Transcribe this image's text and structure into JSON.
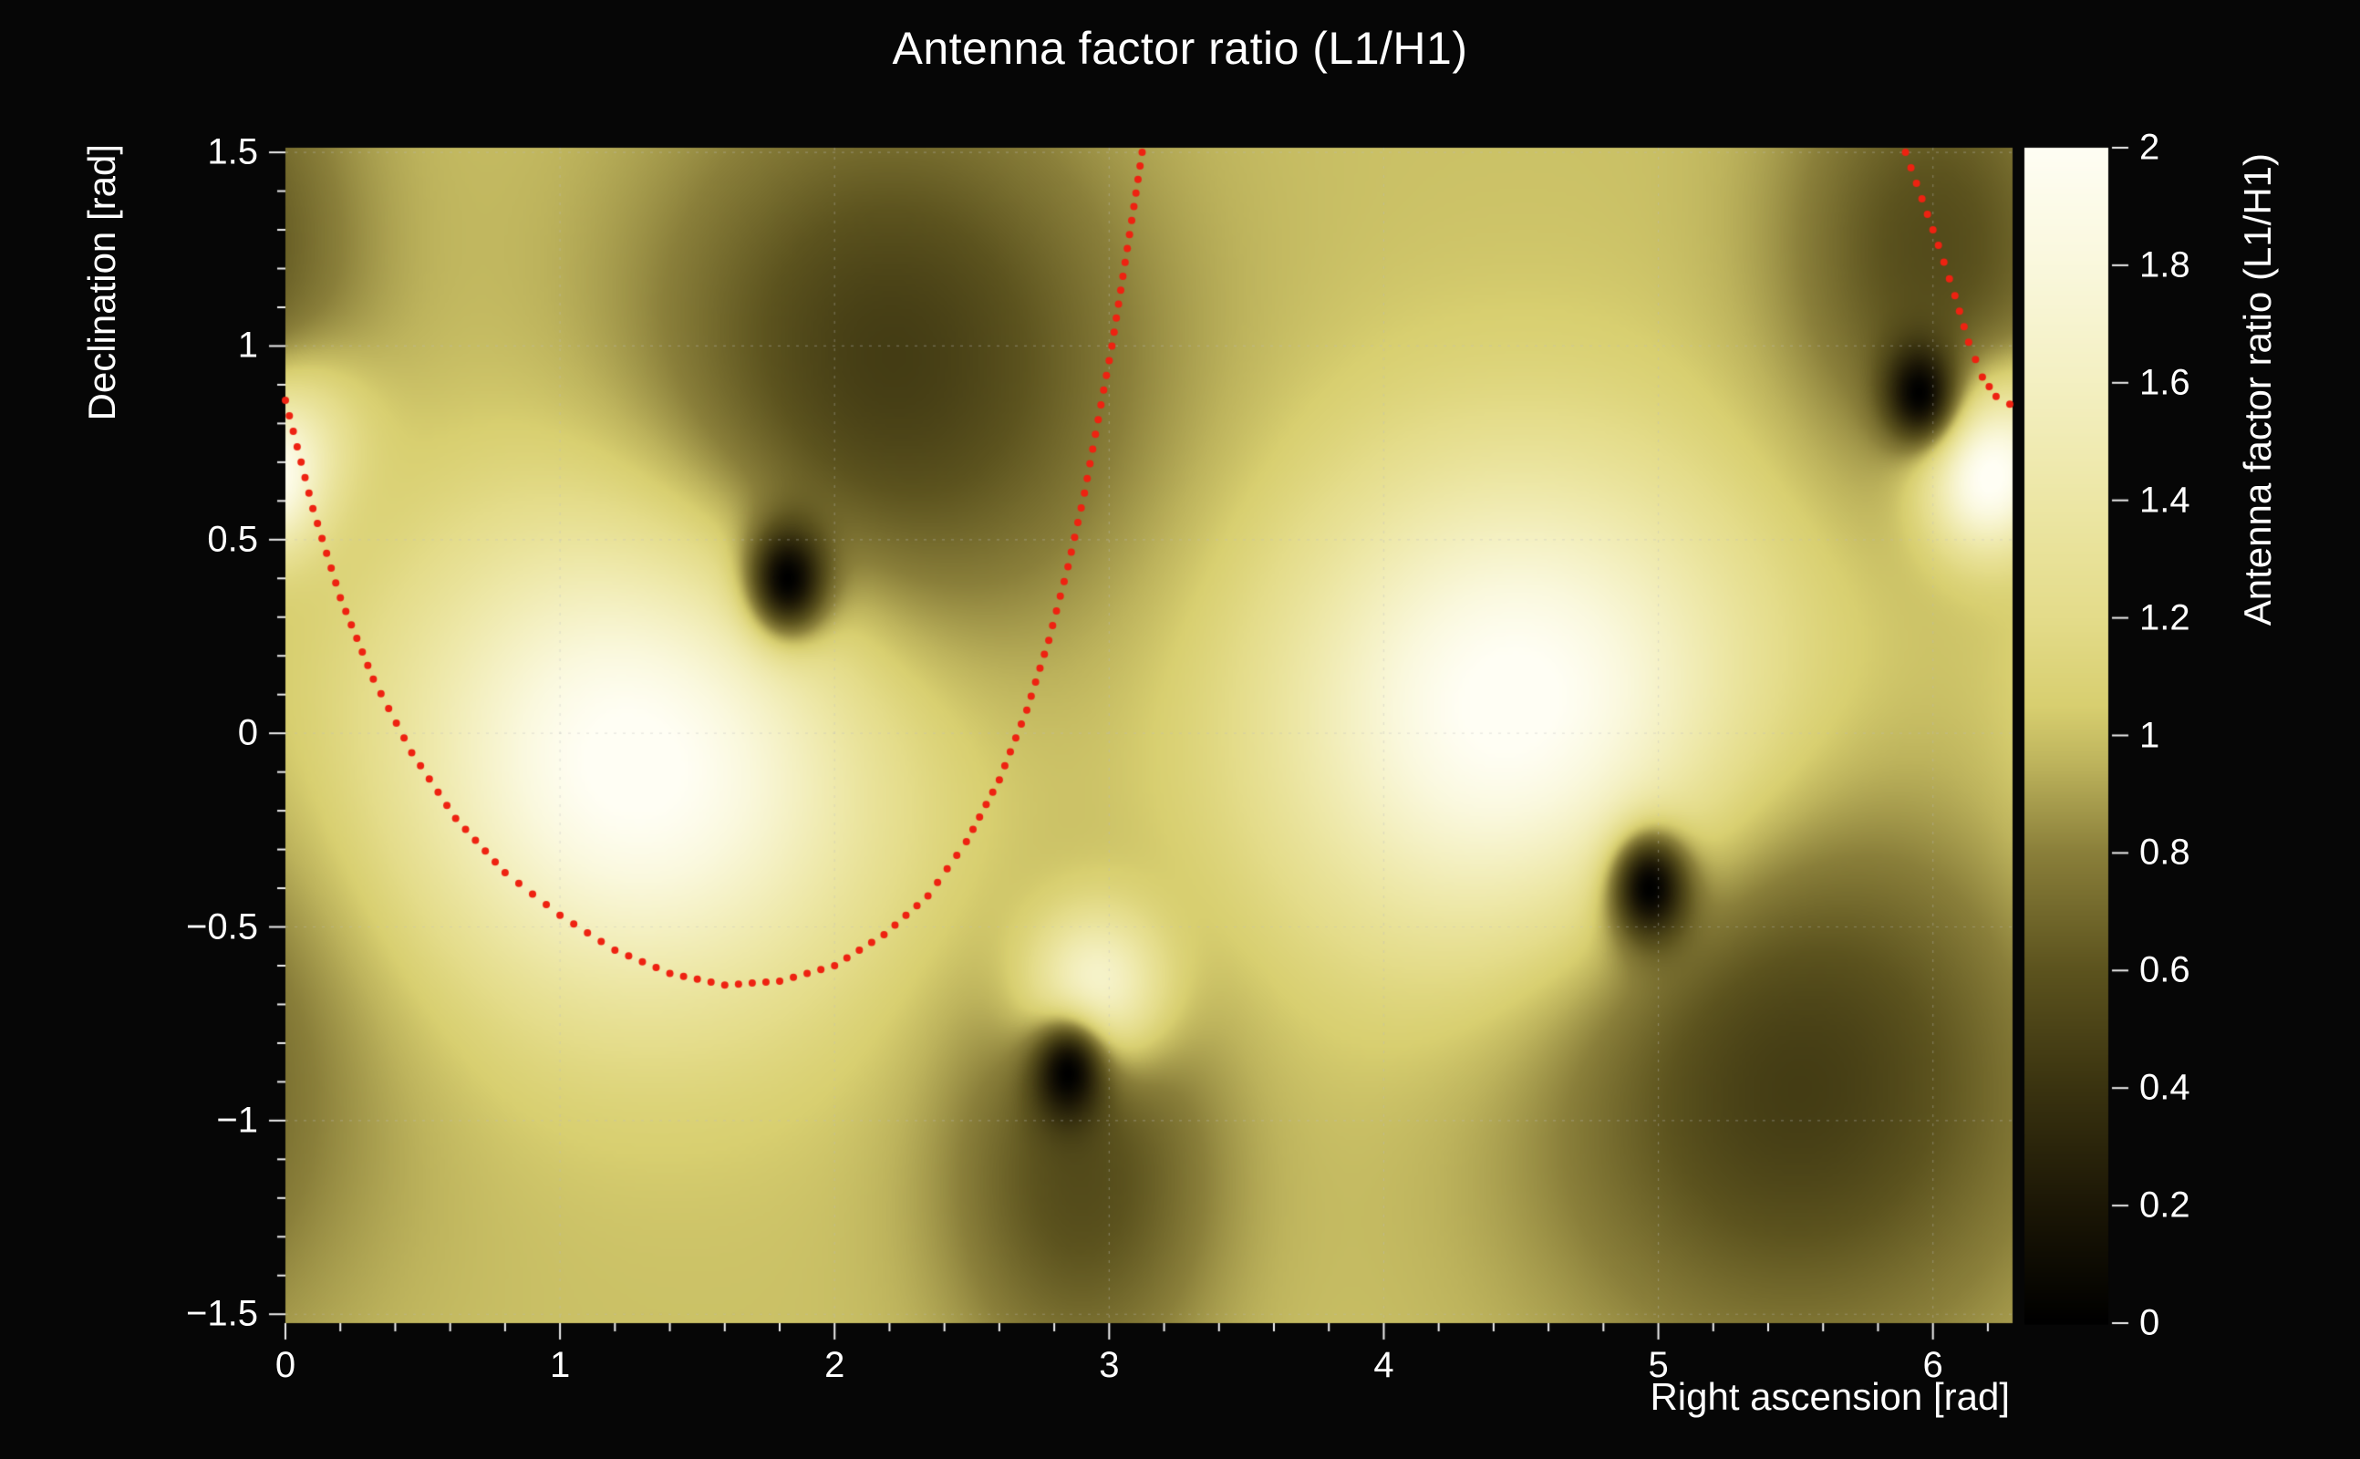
{
  "chart_data": {
    "type": "heatmap",
    "title": "Antenna factor ratio (L1/H1)",
    "xlabel": "Right ascension [rad]",
    "ylabel": "Declination [rad]",
    "colorbar_label": "Antenna factor ratio (L1/H1)",
    "x_range": [
      0,
      6.29
    ],
    "y_range": [
      -1.523,
      1.512
    ],
    "z_range": [
      0,
      2
    ],
    "x_ticks": [
      {
        "v": 0,
        "label": "0"
      },
      {
        "v": 1,
        "label": "1"
      },
      {
        "v": 2,
        "label": "2"
      },
      {
        "v": 3,
        "label": "3"
      },
      {
        "v": 4,
        "label": "4"
      },
      {
        "v": 5,
        "label": "5"
      },
      {
        "v": 6,
        "label": "6"
      }
    ],
    "x_minor_step": 0.2,
    "y_ticks": [
      {
        "v": 1.5,
        "label": "1.5"
      },
      {
        "v": 1.0,
        "label": "1"
      },
      {
        "v": 0.5,
        "label": "0.5"
      },
      {
        "v": 0,
        "label": "0"
      },
      {
        "v": -0.5,
        "label": "−0.5"
      },
      {
        "v": -1.0,
        "label": "−1"
      },
      {
        "v": -1.5,
        "label": "−1.5"
      }
    ],
    "y_minor_step": 0.1,
    "colorbar_ticks": [
      {
        "v": 0,
        "label": "0"
      },
      {
        "v": 0.2,
        "label": "0.2"
      },
      {
        "v": 0.4,
        "label": "0.4"
      },
      {
        "v": 0.6,
        "label": "0.6"
      },
      {
        "v": 0.8,
        "label": "0.8"
      },
      {
        "v": 1.0,
        "label": "1"
      },
      {
        "v": 1.2,
        "label": "1.2"
      },
      {
        "v": 1.4,
        "label": "1.4"
      },
      {
        "v": 1.6,
        "label": "1.6"
      },
      {
        "v": 1.8,
        "label": "1.8"
      },
      {
        "v": 2.0,
        "label": "2"
      }
    ],
    "colormap": [
      {
        "v": 0.0,
        "c": "#000000"
      },
      {
        "v": 0.2,
        "c": "#1c1706"
      },
      {
        "v": 0.4,
        "c": "#3a3310"
      },
      {
        "v": 0.6,
        "c": "#5c531e"
      },
      {
        "v": 0.8,
        "c": "#8a7f3a"
      },
      {
        "v": 0.95,
        "c": "#bdb35c"
      },
      {
        "v": 1.05,
        "c": "#d8cf70"
      },
      {
        "v": 1.2,
        "c": "#e4dc8a"
      },
      {
        "v": 1.4,
        "c": "#ede7a6"
      },
      {
        "v": 1.6,
        "c": "#f4f0c2"
      },
      {
        "v": 1.8,
        "c": "#faf8dd"
      },
      {
        "v": 2.0,
        "c": "#fffef4"
      }
    ],
    "field": {
      "base": 1.0,
      "bright": [
        {
          "ra": 1.3,
          "dec": -0.05,
          "amp": 1.1,
          "sra": 0.58,
          "sdec": 0.42
        },
        {
          "ra": 4.5,
          "dec": 0.05,
          "amp": 1.1,
          "sra": 0.58,
          "sdec": 0.42
        },
        {
          "ra": 2.95,
          "dec": -0.67,
          "amp": 1.05,
          "sra": 0.17,
          "sdec": 0.14
        },
        {
          "ra": 6.19,
          "dec": 0.65,
          "amp": 1.05,
          "sra": 0.15,
          "sdec": 0.13
        },
        {
          "ra": 6.28,
          "dec": 0.8,
          "amp": 0.5,
          "sra": 0.2,
          "sdec": 0.14
        }
      ],
      "nulls": [
        {
          "ra": 1.83,
          "dec": 0.4,
          "core_s": 0.1,
          "halo": {
            "ra": 2.2,
            "dec": 0.95,
            "amp": 0.55,
            "sra": 0.62,
            "sdec": 0.5
          }
        },
        {
          "ra": 2.85,
          "dec": -0.88,
          "core_s": 0.09,
          "halo": {
            "ra": 2.9,
            "dec": -1.15,
            "amp": 0.45,
            "sra": 0.35,
            "sdec": 0.38
          }
        },
        {
          "ra": 4.97,
          "dec": -0.4,
          "core_s": 0.1,
          "halo": {
            "ra": 5.5,
            "dec": -0.9,
            "amp": 0.55,
            "sra": 0.65,
            "sdec": 0.5
          }
        },
        {
          "ra": 5.95,
          "dec": 0.88,
          "core_s": 0.09,
          "halo": {
            "ra": 6.0,
            "dec": 1.25,
            "amp": 0.45,
            "sra": 0.38,
            "sdec": 0.4
          }
        }
      ]
    },
    "track": {
      "color": "#ee2211",
      "dot_radius": 4,
      "segments": [
        [
          [
            0.0,
            0.86
          ],
          [
            0.1,
            0.58
          ],
          [
            0.2,
            0.35
          ],
          [
            0.32,
            0.14
          ],
          [
            0.46,
            -0.05
          ],
          [
            0.62,
            -0.22
          ],
          [
            0.8,
            -0.36
          ],
          [
            1.0,
            -0.47
          ],
          [
            1.2,
            -0.56
          ],
          [
            1.4,
            -0.62
          ],
          [
            1.6,
            -0.65
          ],
          [
            1.8,
            -0.64
          ],
          [
            2.0,
            -0.6
          ],
          [
            2.18,
            -0.52
          ],
          [
            2.34,
            -0.42
          ],
          [
            2.48,
            -0.28
          ],
          [
            2.6,
            -0.12
          ],
          [
            2.7,
            0.06
          ],
          [
            2.78,
            0.24
          ],
          [
            2.85,
            0.43
          ],
          [
            2.91,
            0.62
          ],
          [
            2.96,
            0.81
          ],
          [
            3.01,
            1.0
          ],
          [
            3.05,
            1.18
          ],
          [
            3.09,
            1.36
          ],
          [
            3.12,
            1.5
          ]
        ],
        [
          [
            5.9,
            1.5
          ],
          [
            5.96,
            1.38
          ],
          [
            6.02,
            1.26
          ],
          [
            6.08,
            1.13
          ],
          [
            6.13,
            1.01
          ],
          [
            6.18,
            0.92
          ],
          [
            6.23,
            0.87
          ],
          [
            6.28,
            0.85
          ]
        ]
      ]
    },
    "grid_color": "rgba(190,190,190,0.38)",
    "background": "#060606",
    "text_color": "#ffffff"
  }
}
